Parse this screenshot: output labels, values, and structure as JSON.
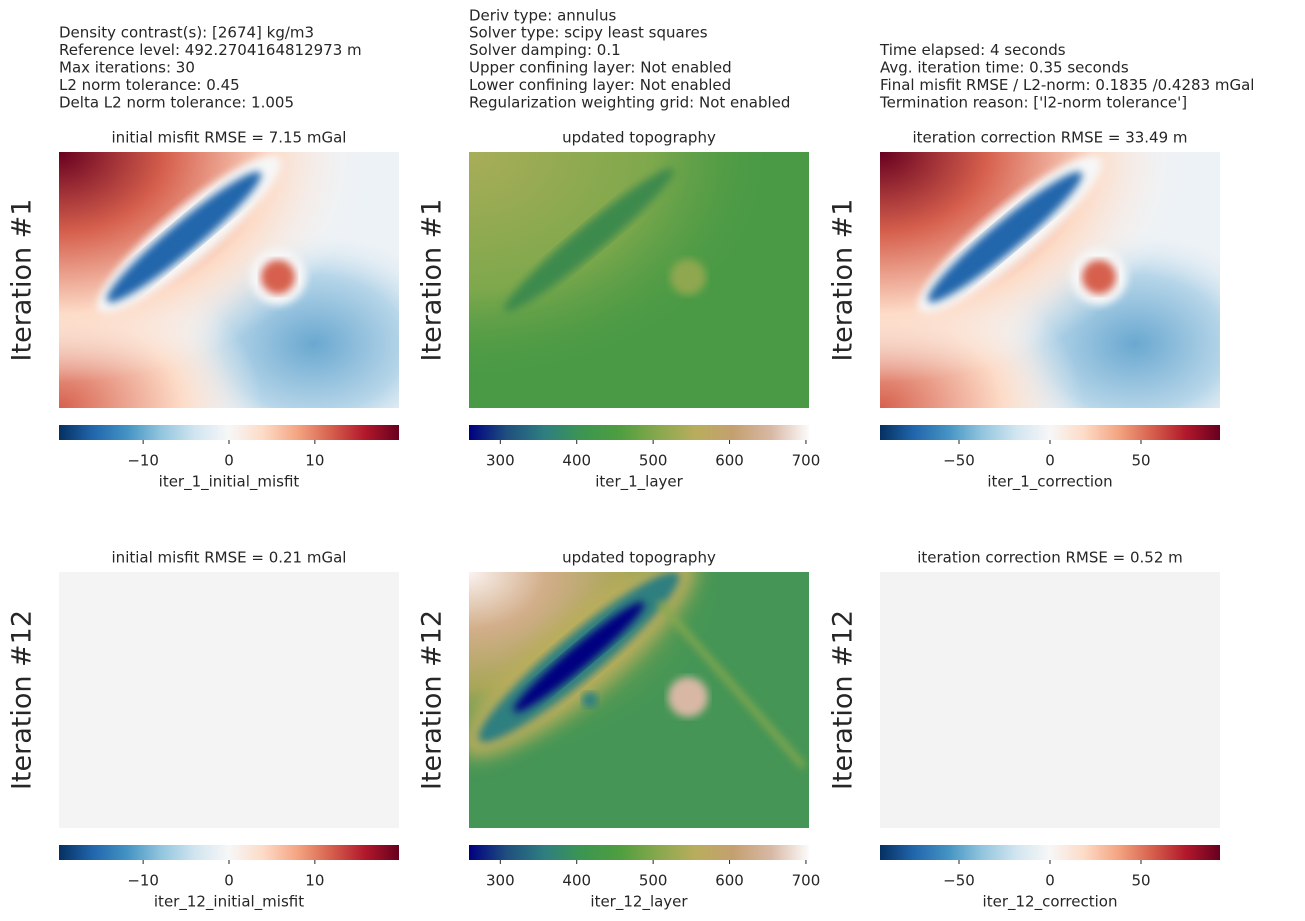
{
  "header": {
    "left": [
      "Density contrast(s): [2674] kg/m3",
      "Reference level: 492.2704164812973 m",
      "Max iterations: 30",
      "L2 norm tolerance: 0.45",
      "Delta L2 norm tolerance: 1.005"
    ],
    "middle": [
      "Deriv type: annulus",
      "Solver type: scipy least squares",
      "Solver damping: 0.1",
      "Upper confining layer: Not enabled",
      "Lower confining layer: Not enabled",
      "Regularization weighting grid: Not enabled"
    ],
    "right": [
      "Time elapsed: 4 seconds",
      "Avg. iteration time: 0.35 seconds",
      "Final misfit RMSE / L2-norm: 0.1835 /0.4283 mGal",
      "Termination reason: ['l2-norm tolerance']"
    ]
  },
  "chart_data": [
    {
      "type": "heatmap",
      "title": "initial misfit RMSE = 7.15 mGal",
      "ylabel": "Iteration #1",
      "colorbar_label": "iter_1_initial_misfit",
      "clim": [
        -19.8,
        19.8
      ],
      "cticks": [
        {
          "value": -10,
          "label": "−10"
        },
        0,
        10
      ],
      "cmap": [
        "#053061",
        "#2166ac",
        "#4393c3",
        "#92c5de",
        "#d1e5f0",
        "#f7f7f7",
        "#fddbc7",
        "#f4a582",
        "#d6604d",
        "#b2182b",
        "#67001f"
      ]
    },
    {
      "type": "heatmap",
      "title": "updated topography",
      "ylabel": "Iteration #1",
      "colorbar_label": "iter_1_layer",
      "clim": [
        259,
        704
      ],
      "cticks": [
        300,
        400,
        500,
        600,
        700
      ],
      "cmap": [
        "#000080",
        "#1f4f7f",
        "#2e7f80",
        "#3c9651",
        "#4f9e3f",
        "#88a84d",
        "#b9ad5c",
        "#c4a070",
        "#d8b8a4",
        "#fdfbfb"
      ]
    },
    {
      "type": "heatmap",
      "title": "iteration correction RMSE = 33.49 m",
      "ylabel": "Iteration #1",
      "colorbar_label": "iter_1_correction",
      "clim": [
        -93.4,
        93.4
      ],
      "cticks": [
        {
          "value": -50,
          "label": "−50"
        },
        0,
        50
      ],
      "cmap": [
        "#053061",
        "#2166ac",
        "#4393c3",
        "#92c5de",
        "#d1e5f0",
        "#f7f7f7",
        "#fddbc7",
        "#f4a582",
        "#d6604d",
        "#b2182b",
        "#67001f"
      ]
    },
    {
      "type": "heatmap",
      "title": "initial misfit RMSE = 0.21 mGal",
      "ylabel": "Iteration #12",
      "colorbar_label": "iter_12_initial_misfit",
      "clim": [
        -19.8,
        19.8
      ],
      "cticks": [
        {
          "value": -10,
          "label": "−10"
        },
        0,
        10
      ],
      "cmap": [
        "#053061",
        "#2166ac",
        "#4393c3",
        "#92c5de",
        "#d1e5f0",
        "#f7f7f7",
        "#fddbc7",
        "#f4a582",
        "#d6604d",
        "#b2182b",
        "#67001f"
      ]
    },
    {
      "type": "heatmap",
      "title": "updated topography",
      "ylabel": "Iteration #12",
      "colorbar_label": "iter_12_layer",
      "clim": [
        259,
        704
      ],
      "cticks": [
        300,
        400,
        500,
        600,
        700
      ],
      "cmap": [
        "#000080",
        "#1f4f7f",
        "#2e7f80",
        "#3c9651",
        "#4f9e3f",
        "#88a84d",
        "#b9ad5c",
        "#c4a070",
        "#d8b8a4",
        "#fdfbfb"
      ]
    },
    {
      "type": "heatmap",
      "title": "iteration correction RMSE = 0.52 m",
      "ylabel": "Iteration #12",
      "colorbar_label": "iter_12_correction",
      "clim": [
        -93.4,
        93.4
      ],
      "cticks": [
        {
          "value": -50,
          "label": "−50"
        },
        0,
        50
      ],
      "cmap": [
        "#053061",
        "#2166ac",
        "#4393c3",
        "#92c5de",
        "#d1e5f0",
        "#f7f7f7",
        "#fddbc7",
        "#f4a582",
        "#d6604d",
        "#b2182b",
        "#67001f"
      ]
    }
  ]
}
